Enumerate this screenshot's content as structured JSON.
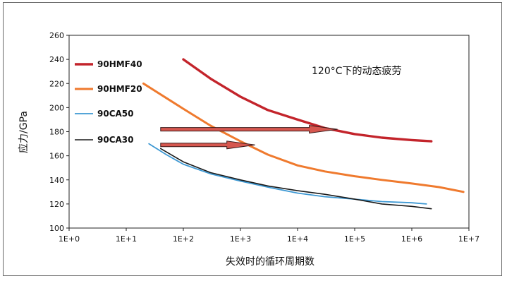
{
  "chart_data": {
    "type": "line",
    "xscale": "log",
    "xlabel": "失效时的循环周期数",
    "ylabel": "应力/GPa",
    "annotation": "120°C下的动态疲劳",
    "xlim": [
      1,
      10000000
    ],
    "ylim": [
      100,
      260
    ],
    "xticks": [
      "1E+0",
      "1E+1",
      "1E+2",
      "1E+3",
      "1E+4",
      "1E+5",
      "1E+6",
      "1E+7"
    ],
    "yticks": [
      100,
      120,
      140,
      160,
      180,
      200,
      220,
      240,
      260
    ],
    "grid": false,
    "legend_position": "left",
    "series": [
      {
        "name": "90HMF40",
        "color": "#c3242b",
        "x": [
          100,
          300,
          1000,
          3000,
          10000,
          30000,
          100000,
          300000,
          1000000,
          2200000
        ],
        "y": [
          240,
          224,
          209,
          198,
          190,
          183,
          178,
          175,
          173,
          172
        ]
      },
      {
        "name": "90HMF20",
        "color": "#ef7a2e",
        "x": [
          20,
          50,
          100,
          300,
          1000,
          3000,
          10000,
          30000,
          100000,
          300000,
          1000000,
          3000000,
          8000000
        ],
        "y": [
          220,
          208,
          199,
          185,
          172,
          161,
          152,
          147,
          143,
          140,
          137,
          134,
          130
        ]
      },
      {
        "name": "90CA50",
        "color": "#3d98d3",
        "x": [
          25,
          50,
          100,
          300,
          1000,
          3000,
          10000,
          30000,
          100000,
          300000,
          1000000,
          1800000
        ],
        "y": [
          170,
          161,
          153,
          145,
          139,
          134,
          129,
          126,
          124,
          122,
          121,
          120
        ]
      },
      {
        "name": "90CA30",
        "color": "#1a1a1a",
        "x": [
          40,
          100,
          300,
          1000,
          3000,
          10000,
          30000,
          100000,
          300000,
          1000000,
          2200000
        ],
        "y": [
          166,
          155,
          146,
          140,
          135,
          131,
          128,
          124,
          120,
          118,
          116
        ]
      }
    ],
    "arrows": [
      {
        "x_start": 40,
        "x_end": 50000,
        "y": 182
      },
      {
        "x_start": 40,
        "x_end": 1800,
        "y": 169
      }
    ]
  }
}
